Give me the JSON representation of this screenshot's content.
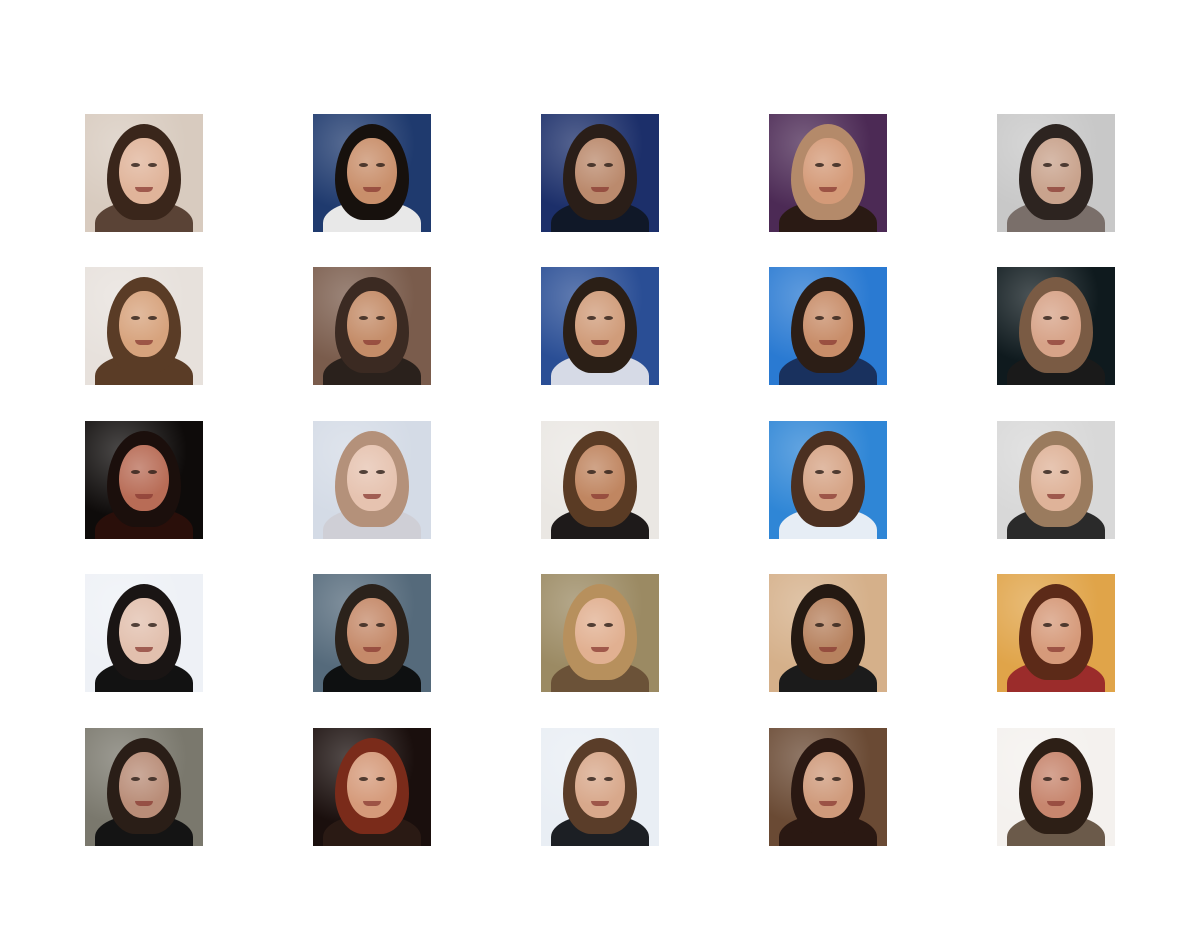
{
  "grid": {
    "rows": 5,
    "cols": 5,
    "tiles": [
      {
        "bg": "#d8cbbf",
        "hair": "#3a261b",
        "skin": "#e0b49a",
        "body": "#5a4336"
      },
      {
        "bg": "#1f3a6e",
        "hair": "#17110d",
        "skin": "#c98f6b",
        "body": "#e8e8e8"
      },
      {
        "bg": "#1c2f6a",
        "hair": "#2a1e18",
        "skin": "#bb8a6d",
        "body": "#101828"
      },
      {
        "bg": "#4c2a55",
        "hair": "#b48a6a",
        "skin": "#d49a78",
        "body": "#2a1a14"
      },
      {
        "bg": "#c8c8c8",
        "hair": "#2d2420",
        "skin": "#c9a38d",
        "body": "#7a6f6a"
      },
      {
        "bg": "#e7e1dc",
        "hair": "#5a3c26",
        "skin": "#d7a37d",
        "body": "#5a3c26"
      },
      {
        "bg": "#7a5c4c",
        "hair": "#3b2a22",
        "skin": "#c48c68",
        "body": "#2a211c"
      },
      {
        "bg": "#2a4e95",
        "hair": "#2b1f16",
        "skin": "#d09c7a",
        "body": "#d6dae6"
      },
      {
        "bg": "#2a7ad2",
        "hair": "#2c1e16",
        "skin": "#c88d69",
        "body": "#19315e"
      },
      {
        "bg": "#0f1a1e",
        "hair": "#7a5b44",
        "skin": "#d7a388",
        "body": "#1a1a1a"
      },
      {
        "bg": "#0e0b0a",
        "hair": "#1b0f0c",
        "skin": "#b86c56",
        "body": "#2a0f0a"
      },
      {
        "bg": "#d4dbe6",
        "hair": "#b4917a",
        "skin": "#e6c3b0",
        "body": "#cfcfd6"
      },
      {
        "bg": "#eae7e3",
        "hair": "#5a3b24",
        "skin": "#c08661",
        "body": "#1e1a1a"
      },
      {
        "bg": "#2f86d6",
        "hair": "#4b3021",
        "skin": "#d6a486",
        "body": "#e6edf5"
      },
      {
        "bg": "#d8d8d8",
        "hair": "#9a7b5e",
        "skin": "#dfb399",
        "body": "#2a2a2a"
      },
      {
        "bg": "#eef1f6",
        "hair": "#1a1514",
        "skin": "#e2c0ae",
        "body": "#121212"
      },
      {
        "bg": "#556a7b",
        "hair": "#2b221b",
        "skin": "#c58a6a",
        "body": "#0e1011"
      },
      {
        "bg": "#9b8a63",
        "hair": "#b7905d",
        "skin": "#e1b091",
        "body": "#6b5238"
      },
      {
        "bg": "#d5b08a",
        "hair": "#241912",
        "skin": "#b7825f",
        "body": "#1b1b1b"
      },
      {
        "bg": "#e0a449",
        "hair": "#5c2a18",
        "skin": "#d69a7a",
        "body": "#9b2c2b"
      },
      {
        "bg": "#7a786d",
        "hair": "#2a1e17",
        "skin": "#b98d78",
        "body": "#141414"
      },
      {
        "bg": "#1a0f0d",
        "hair": "#7a2b1a",
        "skin": "#d59a7a",
        "body": "#2a1a14"
      },
      {
        "bg": "#e9eef4",
        "hair": "#5a3d29",
        "skin": "#d8a88b",
        "body": "#1c1f24"
      },
      {
        "bg": "#6a4a34",
        "hair": "#2a1812",
        "skin": "#cf9a7b",
        "body": "#2a1812"
      },
      {
        "bg": "#f4f1ee",
        "hair": "#2d1f16",
        "skin": "#c7866e",
        "body": "#6b5a4a"
      }
    ]
  }
}
